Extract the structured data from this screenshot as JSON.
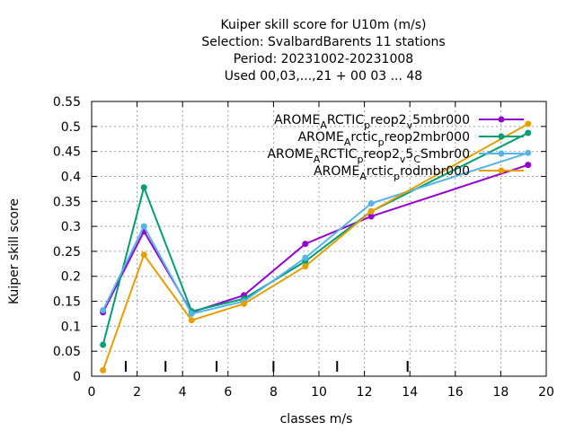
{
  "chart_data": {
    "type": "line",
    "title_lines": [
      "Kuiper skill score  for U10m (m/s)",
      "Selection: SvalbardBarents      11 stations",
      "Period: 20231002-20231008",
      "Used  00,03,...,21  + 00 03 ... 48"
    ],
    "xlabel": "classes m/s",
    "ylabel": "Kuiper skill score",
    "xlim": [
      0,
      20
    ],
    "ylim": [
      0,
      0.55
    ],
    "x_ticks": [
      "0",
      "2",
      "4",
      "6",
      "8",
      "10",
      "12",
      "14",
      "16",
      "18",
      "20"
    ],
    "y_ticks": [
      "0",
      "0.05",
      "0.1",
      "0.15",
      "0.2",
      "0.25",
      "0.3",
      "0.35",
      "0.4",
      "0.45",
      "0.5",
      "0.55"
    ],
    "grid": true,
    "legend_position": "top-right",
    "class_limit_marks": [
      1.5,
      3.25,
      5.5,
      8.0,
      10.8,
      13.9
    ],
    "series": [
      {
        "name": "AROME_ARCTIC_preop2_v5mbr000",
        "legend_segments": [
          [
            "AROME",
            ""
          ],
          [
            "A",
            "sub"
          ],
          [
            "RCTIC",
            ""
          ],
          [
            "p",
            "sub"
          ],
          [
            "reop2",
            ""
          ],
          [
            "v",
            "sub"
          ],
          [
            "5mbr000",
            ""
          ]
        ],
        "color": "#9400d3",
        "marker": "circle",
        "x": [
          0.5,
          2.3,
          4.4,
          6.7,
          9.4,
          12.3,
          19.2
        ],
        "y": [
          0.128,
          0.29,
          0.128,
          0.162,
          0.265,
          0.32,
          0.423
        ]
      },
      {
        "name": "AROME_Arctic_preop2mbr000",
        "legend_segments": [
          [
            "AROME",
            ""
          ],
          [
            "A",
            "sub"
          ],
          [
            "rctic",
            ""
          ],
          [
            "p",
            "sub"
          ],
          [
            "reop2mbr000",
            ""
          ]
        ],
        "color": "#009e73",
        "marker": "circle",
        "x": [
          0.5,
          2.3,
          4.4,
          6.7,
          9.4,
          12.3,
          19.2
        ],
        "y": [
          0.063,
          0.378,
          0.13,
          0.155,
          0.23,
          0.33,
          0.487
        ]
      },
      {
        "name": "AROME_ARCTIC_preop2_v5_CSmbr00",
        "legend_segments": [
          [
            "AROME",
            ""
          ],
          [
            "A",
            "sub"
          ],
          [
            "RCTIC",
            ""
          ],
          [
            "p",
            "sub"
          ],
          [
            "reop2",
            ""
          ],
          [
            "v",
            "sub"
          ],
          [
            "5",
            ""
          ],
          [
            "C",
            "sub"
          ],
          [
            "Smbr00",
            ""
          ]
        ],
        "color": "#56b4e9",
        "marker": "circle",
        "x": [
          0.5,
          2.3,
          4.4,
          6.7,
          9.4,
          12.3,
          19.2
        ],
        "y": [
          0.132,
          0.3,
          0.125,
          0.15,
          0.237,
          0.346,
          0.447
        ]
      },
      {
        "name": "AROME_Arctic_prodmbr000",
        "legend_segments": [
          [
            "AROME",
            ""
          ],
          [
            "A",
            "sub"
          ],
          [
            "rctic",
            ""
          ],
          [
            "p",
            "sub"
          ],
          [
            "rodmbr000",
            ""
          ]
        ],
        "color": "#e69f00",
        "marker": "circle",
        "x": [
          0.5,
          2.3,
          4.4,
          6.7,
          9.4,
          12.3,
          19.2
        ],
        "y": [
          0.012,
          0.243,
          0.112,
          0.145,
          0.22,
          0.33,
          0.505
        ]
      }
    ]
  }
}
